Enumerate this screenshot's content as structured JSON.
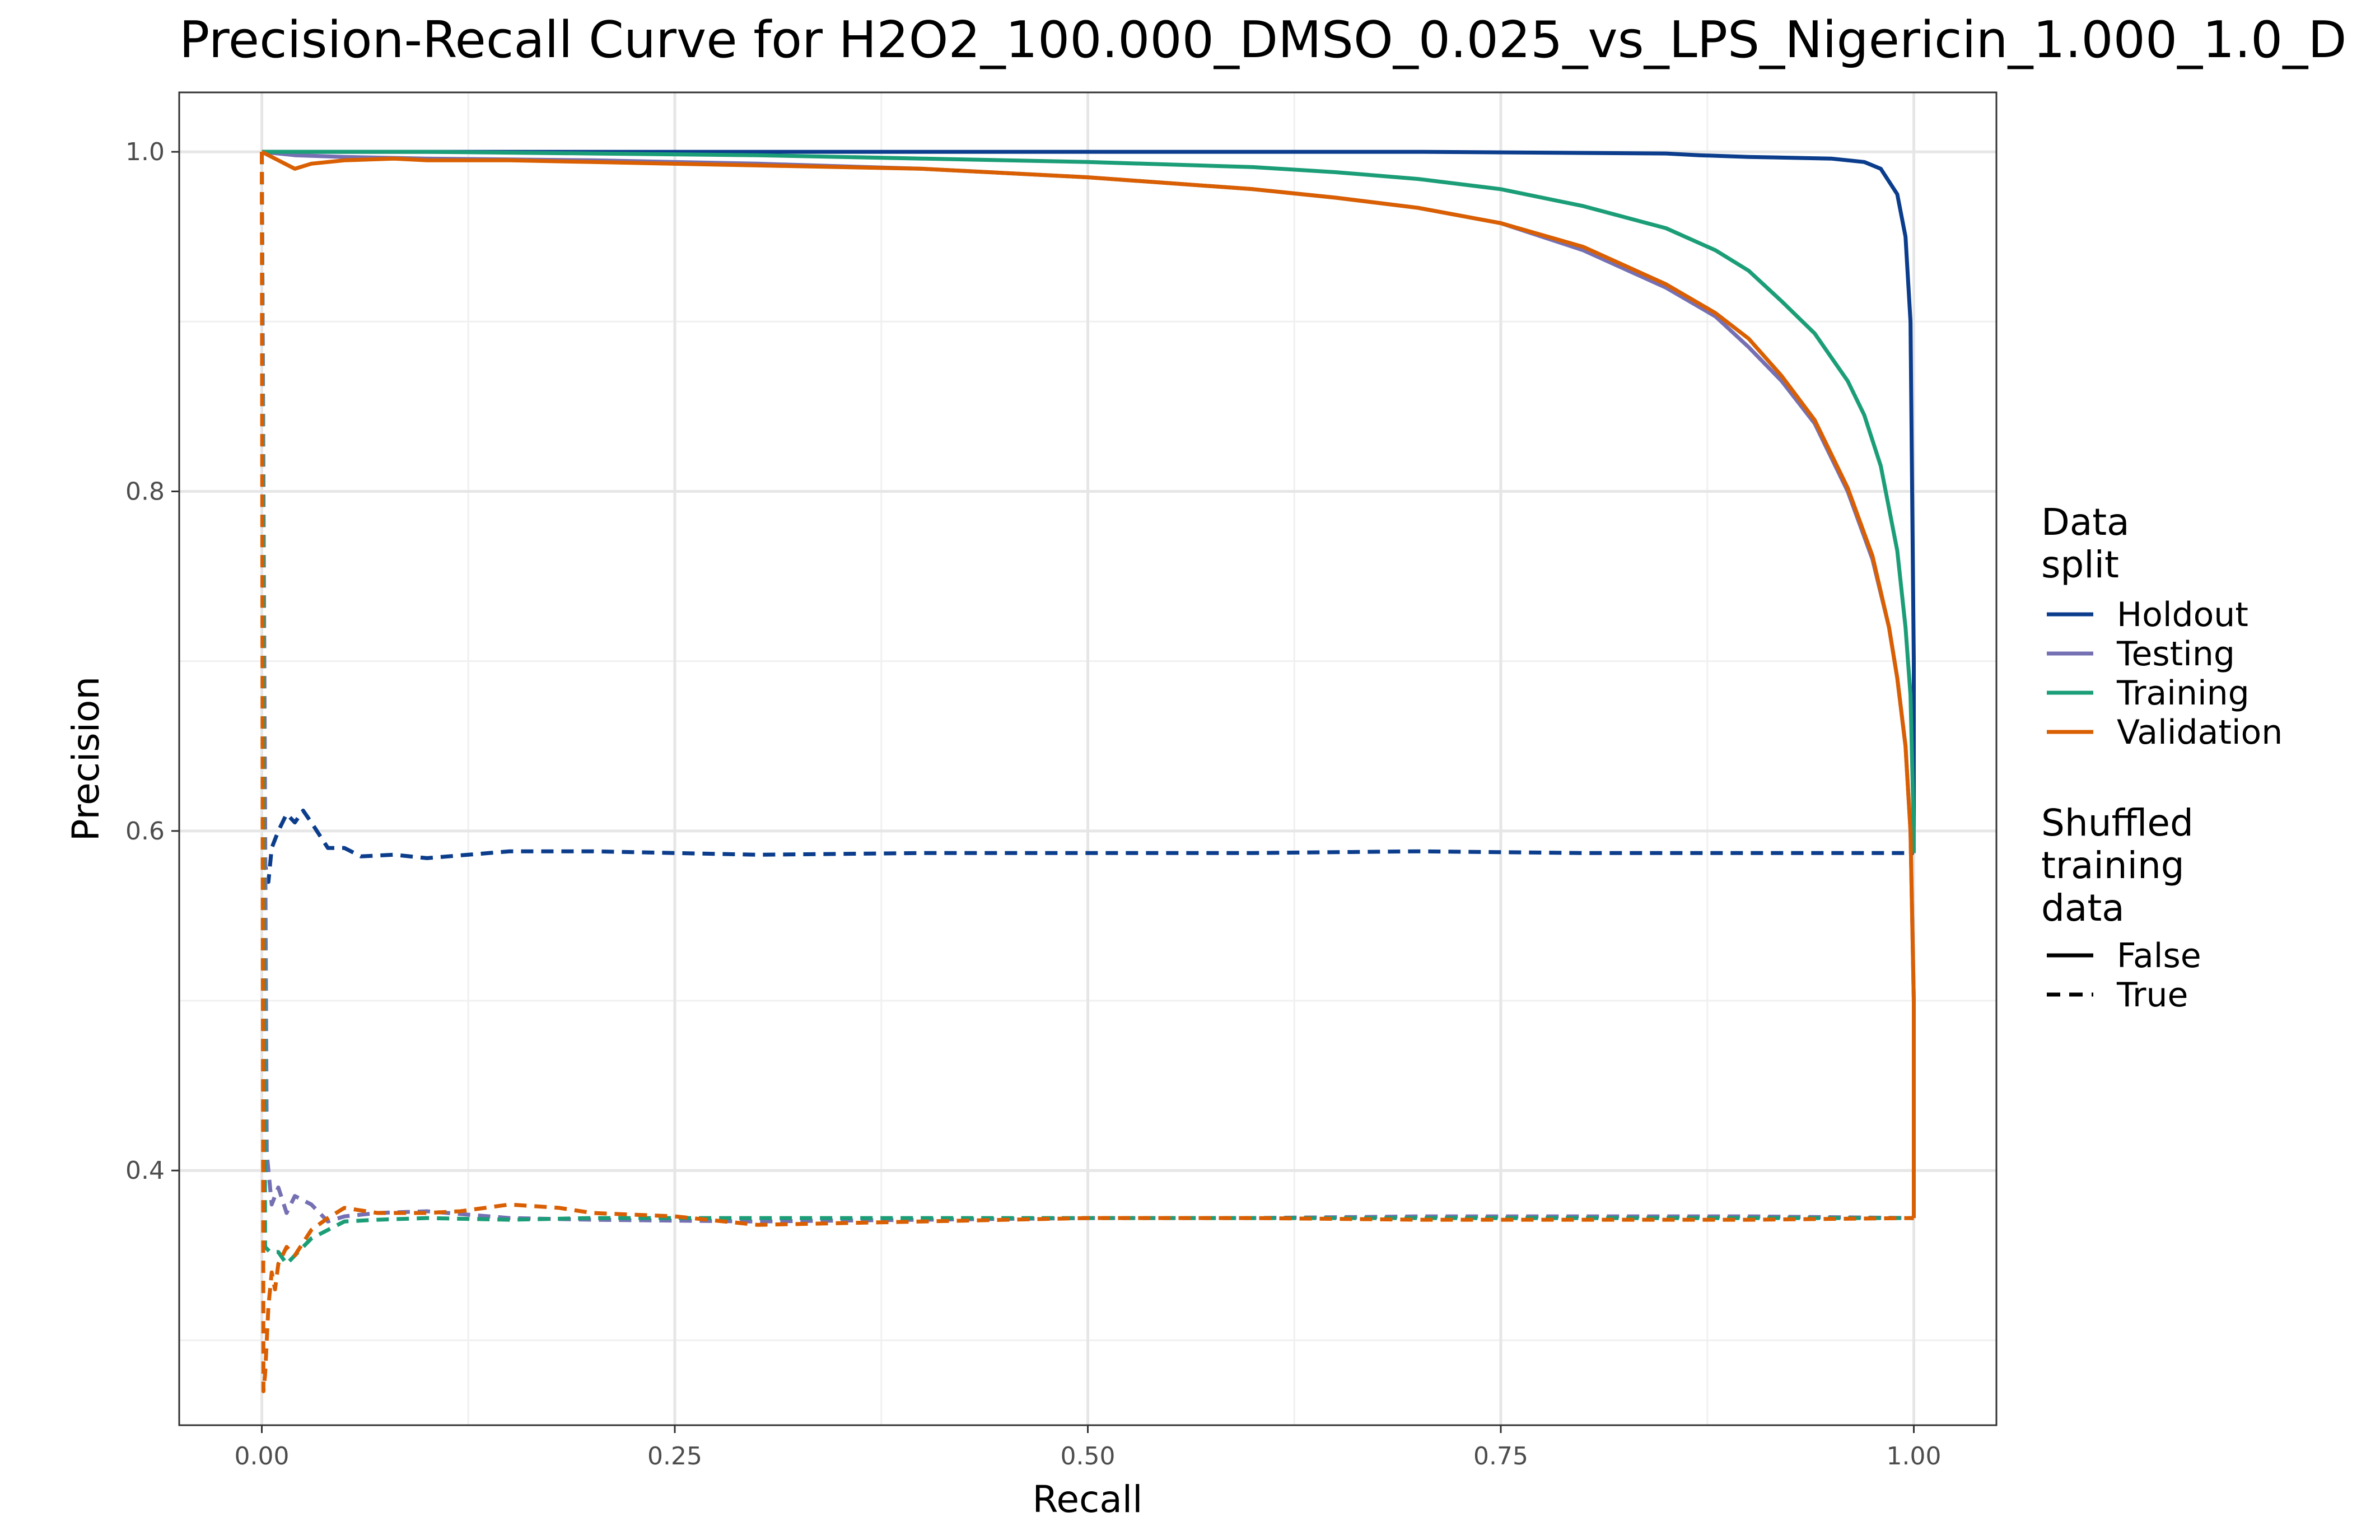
{
  "chart_data": {
    "type": "line",
    "title": "Precision-Recall Curve for H2O2_100.000_DMSO_0.025_vs_LPS_Nigericin_1.000_1.0_D",
    "xlabel": "Recall",
    "ylabel": "Precision",
    "xlim": [
      -0.05,
      1.05
    ],
    "ylim": [
      0.25,
      1.035
    ],
    "x_ticks": [
      "0.00",
      "0.25",
      "0.50",
      "0.75",
      "1.00"
    ],
    "y_ticks": [
      "0.4",
      "0.6",
      "0.8",
      "1.0"
    ],
    "grid": true,
    "legend_position": "right",
    "color_legend": {
      "title": "Data\nsplit",
      "entries": [
        {
          "label": "Holdout",
          "color": "#0b3d8c"
        },
        {
          "label": "Testing",
          "color": "#7570b3"
        },
        {
          "label": "Training",
          "color": "#1b9e77"
        },
        {
          "label": "Validation",
          "color": "#d95f02"
        }
      ]
    },
    "linetype_legend": {
      "title": "Shuffled\ntraining\ndata",
      "entries": [
        {
          "label": "False",
          "dash": "solid"
        },
        {
          "label": "True",
          "dash": "dashed"
        }
      ]
    },
    "series": [
      {
        "split": "Holdout",
        "shuffled": "False",
        "color": "#0b3d8c",
        "dashed": false,
        "x": [
          0,
          0.05,
          0.2,
          0.5,
          0.7,
          0.85,
          0.87,
          0.9,
          0.95,
          0.97,
          0.98,
          0.99,
          0.995,
          0.998,
          1.0,
          1.0
        ],
        "y": [
          1.0,
          1.0,
          1.0,
          1.0,
          1.0,
          0.999,
          0.998,
          0.997,
          0.996,
          0.994,
          0.99,
          0.975,
          0.95,
          0.9,
          0.7,
          0.587
        ]
      },
      {
        "split": "Holdout",
        "shuffled": "True",
        "color": "#0b3d8c",
        "dashed": true,
        "x": [
          0,
          0.002,
          0.004,
          0.006,
          0.01,
          0.015,
          0.02,
          0.025,
          0.03,
          0.04,
          0.05,
          0.06,
          0.08,
          0.1,
          0.15,
          0.2,
          0.3,
          0.4,
          0.5,
          0.6,
          0.7,
          0.8,
          0.9,
          1.0
        ],
        "y": [
          1.0,
          0.58,
          0.57,
          0.59,
          0.6,
          0.61,
          0.605,
          0.612,
          0.605,
          0.59,
          0.59,
          0.585,
          0.586,
          0.584,
          0.588,
          0.588,
          0.586,
          0.587,
          0.587,
          0.587,
          0.588,
          0.587,
          0.587,
          0.587
        ]
      },
      {
        "split": "Testing",
        "shuffled": "False",
        "color": "#7570b3",
        "dashed": false,
        "x": [
          0,
          0.02,
          0.05,
          0.1,
          0.2,
          0.3,
          0.4,
          0.5,
          0.6,
          0.65,
          0.7,
          0.75,
          0.8,
          0.85,
          0.88,
          0.9,
          0.92,
          0.94,
          0.96,
          0.975,
          0.985,
          0.99,
          0.995,
          0.998,
          1.0,
          1.0
        ],
        "y": [
          1.0,
          0.998,
          0.997,
          0.996,
          0.995,
          0.993,
          0.99,
          0.985,
          0.978,
          0.973,
          0.967,
          0.958,
          0.942,
          0.92,
          0.903,
          0.885,
          0.865,
          0.84,
          0.8,
          0.76,
          0.72,
          0.69,
          0.65,
          0.6,
          0.5,
          0.372
        ]
      },
      {
        "split": "Testing",
        "shuffled": "True",
        "color": "#7570b3",
        "dashed": true,
        "x": [
          0,
          0.003,
          0.006,
          0.01,
          0.015,
          0.02,
          0.03,
          0.04,
          0.05,
          0.07,
          0.1,
          0.15,
          0.2,
          0.3,
          0.4,
          0.5,
          0.6,
          0.7,
          0.8,
          0.9,
          1.0
        ],
        "y": [
          1.0,
          0.41,
          0.38,
          0.39,
          0.375,
          0.385,
          0.38,
          0.37,
          0.373,
          0.375,
          0.376,
          0.372,
          0.371,
          0.37,
          0.371,
          0.372,
          0.372,
          0.373,
          0.373,
          0.373,
          0.372
        ]
      },
      {
        "split": "Training",
        "shuffled": "False",
        "color": "#1b9e77",
        "dashed": false,
        "x": [
          0,
          0.1,
          0.2,
          0.3,
          0.4,
          0.5,
          0.6,
          0.65,
          0.7,
          0.75,
          0.8,
          0.85,
          0.88,
          0.9,
          0.92,
          0.94,
          0.96,
          0.97,
          0.98,
          0.99,
          0.995,
          0.998,
          1.0,
          1.0
        ],
        "y": [
          1.0,
          1.0,
          0.999,
          0.998,
          0.996,
          0.994,
          0.991,
          0.988,
          0.984,
          0.978,
          0.968,
          0.955,
          0.942,
          0.93,
          0.912,
          0.893,
          0.865,
          0.845,
          0.815,
          0.765,
          0.72,
          0.68,
          0.6,
          0.587
        ]
      },
      {
        "split": "Training",
        "shuffled": "True",
        "color": "#1b9e77",
        "dashed": true,
        "x": [
          0,
          0.002,
          0.005,
          0.01,
          0.015,
          0.02,
          0.03,
          0.04,
          0.05,
          0.07,
          0.1,
          0.15,
          0.2,
          0.3,
          0.4,
          0.5,
          0.6,
          0.7,
          0.8,
          0.9,
          1.0
        ],
        "y": [
          1.0,
          0.355,
          0.352,
          0.352,
          0.345,
          0.35,
          0.36,
          0.365,
          0.37,
          0.371,
          0.372,
          0.371,
          0.372,
          0.372,
          0.372,
          0.372,
          0.372,
          0.372,
          0.372,
          0.372,
          0.372
        ]
      },
      {
        "split": "Validation",
        "shuffled": "False",
        "color": "#d95f02",
        "dashed": false,
        "x": [
          0,
          0.01,
          0.02,
          0.03,
          0.05,
          0.08,
          0.1,
          0.15,
          0.2,
          0.3,
          0.4,
          0.5,
          0.6,
          0.65,
          0.7,
          0.75,
          0.8,
          0.85,
          0.88,
          0.9,
          0.92,
          0.94,
          0.96,
          0.975,
          0.985,
          0.99,
          0.995,
          0.998,
          1.0,
          1.0
        ],
        "y": [
          1.0,
          0.995,
          0.99,
          0.993,
          0.995,
          0.996,
          0.995,
          0.995,
          0.994,
          0.992,
          0.99,
          0.985,
          0.978,
          0.973,
          0.967,
          0.958,
          0.944,
          0.922,
          0.905,
          0.89,
          0.868,
          0.842,
          0.802,
          0.762,
          0.72,
          0.69,
          0.65,
          0.6,
          0.5,
          0.372
        ]
      },
      {
        "split": "Validation",
        "shuffled": "True",
        "color": "#d95f02",
        "dashed": true,
        "x": [
          0,
          0.001,
          0.002,
          0.004,
          0.006,
          0.008,
          0.01,
          0.015,
          0.02,
          0.03,
          0.04,
          0.05,
          0.07,
          0.1,
          0.12,
          0.15,
          0.18,
          0.2,
          0.25,
          0.3,
          0.4,
          0.5,
          0.6,
          0.7,
          0.8,
          0.9,
          1.0
        ],
        "y": [
          1.0,
          0.27,
          0.28,
          0.32,
          0.34,
          0.33,
          0.345,
          0.355,
          0.35,
          0.365,
          0.372,
          0.378,
          0.375,
          0.375,
          0.376,
          0.38,
          0.378,
          0.375,
          0.373,
          0.368,
          0.37,
          0.372,
          0.372,
          0.371,
          0.371,
          0.371,
          0.372
        ]
      }
    ]
  }
}
